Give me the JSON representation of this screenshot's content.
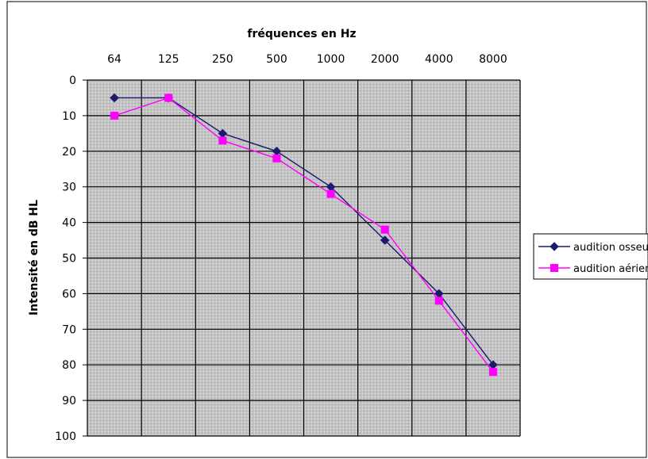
{
  "chart_data": {
    "type": "line",
    "title": "",
    "xlabel": "fréquences en Hz",
    "ylabel": "Intensité en dB HL",
    "categories": [
      "64",
      "125",
      "250",
      "500",
      "1000",
      "2000",
      "4000",
      "8000"
    ],
    "y_ticks": [
      "0",
      "10",
      "20",
      "30",
      "40",
      "50",
      "60",
      "70",
      "80",
      "90",
      "100"
    ],
    "ylim": [
      0,
      100
    ],
    "y_inverted": true,
    "x_axis_position": "top",
    "grid": true,
    "legend_position": "right",
    "series": [
      {
        "name": "audition osseuse",
        "color": "#1a1a6e",
        "marker": "diamond",
        "points": [
          {
            "cat": 0,
            "y": 5
          },
          {
            "cat": 1,
            "y": 5
          },
          {
            "cat": 2,
            "y": 15
          },
          {
            "cat": 3,
            "y": 20
          },
          {
            "cat": 4,
            "y": 30
          },
          {
            "cat": 5,
            "y": 45
          },
          {
            "cat": 6,
            "y": 60
          },
          {
            "cat": 7,
            "y": 80
          }
        ]
      },
      {
        "name": "audition aérienne",
        "color": "#ff00ff",
        "marker": "square",
        "points": [
          {
            "cat": 0,
            "y": 10
          },
          {
            "cat": 1,
            "y": 5
          },
          {
            "cat": 2,
            "y": 17
          },
          {
            "cat": 3,
            "y": 22
          },
          {
            "cat": 4,
            "y": 32
          },
          {
            "cat": 5,
            "y": 42
          },
          {
            "cat": 6,
            "y": 62
          },
          {
            "cat": 7,
            "y": 82
          }
        ]
      }
    ]
  }
}
